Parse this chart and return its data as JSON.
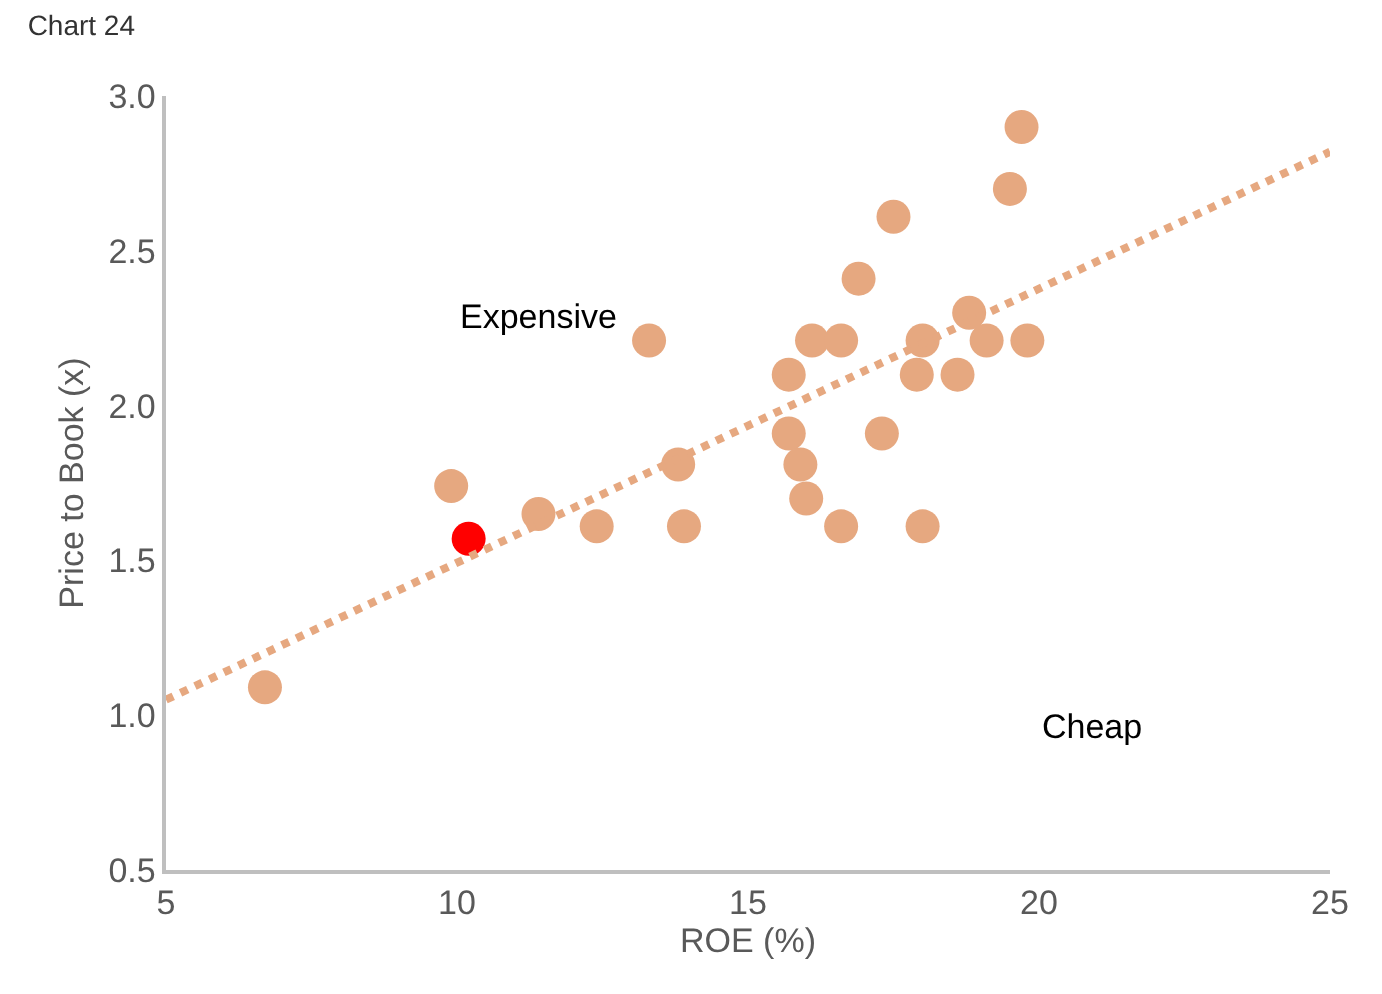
{
  "chart_data": {
    "type": "scatter",
    "title": "Chart 24",
    "xlabel": "ROE (%)",
    "ylabel": "Price to Book (x)",
    "xlim": [
      5,
      25
    ],
    "xticks": [
      5,
      10,
      15,
      20,
      25
    ],
    "ylim": [
      0.5,
      3.0
    ],
    "yticks": [
      0.5,
      {
        "value": 1,
        "label": "1.0"
      },
      1.5,
      {
        "value": 2,
        "label": "2.0"
      },
      2.5,
      {
        "value": 3,
        "label": "3.0"
      }
    ],
    "legend": false,
    "annotations": [
      "Expensive",
      "Cheap"
    ],
    "series": [
      {
        "color": "#e6a880",
        "x": [
          6.7,
          9.9,
          11.4,
          12.4,
          13.3,
          13.8,
          13.9,
          15.7,
          15.7,
          15.9,
          16.0,
          16.1,
          16.6,
          16.6,
          16.9,
          17.3,
          17.5,
          17.9,
          18.0,
          18.0,
          18.6,
          18.8,
          19.1,
          19.5,
          19.7,
          19.8
        ],
        "values": [
          1.09,
          1.74,
          1.65,
          1.61,
          2.21,
          1.81,
          1.61,
          2.1,
          1.91,
          1.81,
          1.7,
          2.21,
          1.61,
          2.21,
          2.41,
          1.91,
          2.61,
          2.1,
          1.61,
          2.21,
          2.1,
          2.3,
          2.21,
          2.7,
          2.9,
          2.21
        ]
      },
      {
        "color": "#ff0000",
        "x": [
          10.2
        ],
        "values": [
          1.57
        ]
      },
      {
        "type": "line",
        "color": "#e6a880",
        "line_style": "dotted",
        "marker": "none",
        "x": [
          5,
          25
        ],
        "values": [
          1.05,
          2.82
        ]
      }
    ]
  }
}
